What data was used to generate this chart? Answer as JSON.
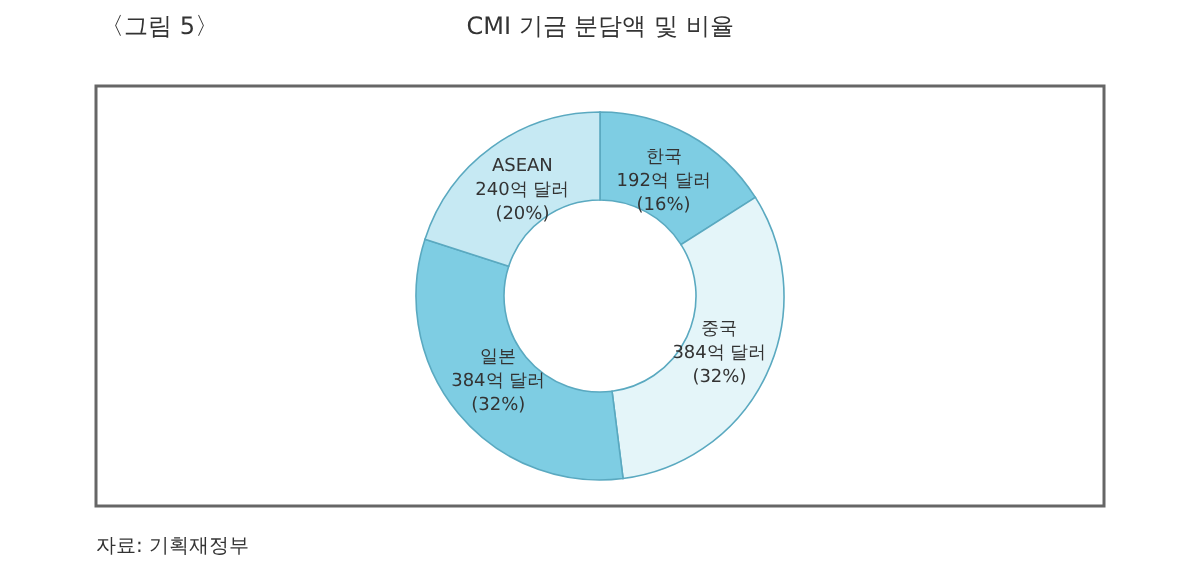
{
  "chart_data": {
    "type": "donut",
    "title": "CMI 기금 분담액 및 비율",
    "categories": [
      "한국",
      "중국",
      "일본",
      "ASEAN"
    ],
    "values": [
      192,
      384,
      384,
      240
    ],
    "value_labels": [
      "192억 달러 (16%)",
      "384억 달러 (32%)",
      "384억 달러 (32%)",
      "240억 달러 (20%)"
    ],
    "colors": [
      "#7ecde3",
      "#e4f5f9",
      "#7ecde3",
      "#c6e9f3"
    ],
    "annotations": [
      "〈그림 5〉",
      "자료: 기획재정부"
    ]
  }
}
